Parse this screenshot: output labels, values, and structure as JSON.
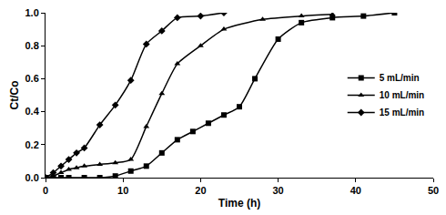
{
  "chart_data": {
    "type": "line",
    "x_label": "Time (h)",
    "y_label": "Ct/Co",
    "xlim": [
      0,
      50
    ],
    "xticks": [
      0,
      10,
      20,
      30,
      40,
      50
    ],
    "ylim": [
      0,
      1
    ],
    "yticks": [
      {
        "value": 0,
        "label": "0.0"
      },
      0.2,
      0.4,
      0.6,
      0.8,
      {
        "value": 1,
        "label": "1.0"
      }
    ],
    "grid": false,
    "legend": "right",
    "series": [
      {
        "name": "5 mL/min",
        "color": "#000000",
        "marker": "square",
        "line_style": "solid",
        "x": [
          0,
          1,
          2,
          3,
          5,
          7,
          9,
          11,
          13,
          15,
          17,
          19,
          21,
          23,
          25,
          27,
          30,
          33,
          37,
          41,
          45
        ],
        "values": [
          0,
          0,
          0,
          0,
          0,
          0,
          0.01,
          0.04,
          0.07,
          0.15,
          0.23,
          0.28,
          0.33,
          0.38,
          0.43,
          0.6,
          0.84,
          0.94,
          0.97,
          0.98,
          1.0
        ]
      },
      {
        "name": "10 mL/min",
        "color": "#000000",
        "marker": "triangle",
        "line_style": "solid",
        "x": [
          0,
          1,
          2,
          3,
          4,
          5,
          7,
          9,
          11,
          13,
          15,
          17,
          20,
          23,
          28,
          33,
          37
        ],
        "values": [
          0,
          0.01,
          0.03,
          0.05,
          0.06,
          0.07,
          0.08,
          0.09,
          0.11,
          0.31,
          0.51,
          0.69,
          0.8,
          0.9,
          0.96,
          0.98,
          0.99
        ]
      },
      {
        "name": "15 mL/min",
        "color": "#000000",
        "marker": "diamond",
        "line_style": "solid",
        "x": [
          0,
          1,
          2,
          3,
          4,
          5,
          7,
          9,
          11,
          13,
          15,
          17,
          20,
          23
        ],
        "values": [
          0,
          0.03,
          0.07,
          0.11,
          0.15,
          0.18,
          0.32,
          0.44,
          0.59,
          0.81,
          0.89,
          0.97,
          0.98,
          1.0
        ]
      }
    ]
  }
}
